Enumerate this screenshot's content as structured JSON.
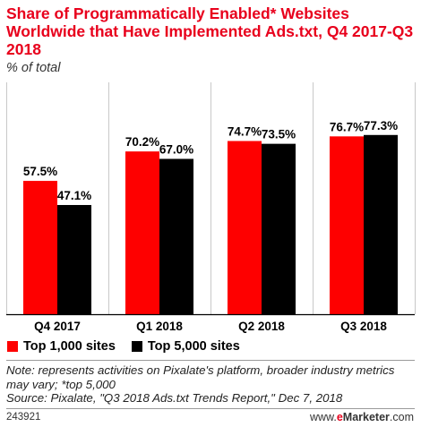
{
  "header": {
    "title": "Share of Programmatically Enabled* Websites Worldwide that Have Implemented Ads.txt, Q4 2017-Q3 2018",
    "subtitle": "% of total"
  },
  "chart_data": {
    "type": "bar",
    "categories": [
      "Q4 2017",
      "Q1 2018",
      "Q2 2018",
      "Q3 2018"
    ],
    "series": [
      {
        "name": "Top 1,000 sites",
        "color": "#fe0000",
        "values": [
          57.5,
          70.2,
          74.7,
          76.7
        ],
        "labels": [
          "57.5%",
          "70.2%",
          "74.7%",
          "76.7%"
        ]
      },
      {
        "name": "Top 5,000 sites",
        "color": "#000000",
        "values": [
          47.1,
          67.0,
          73.5,
          77.3
        ],
        "labels": [
          "47.1%",
          "67.0%",
          "73.5%",
          "77.3%"
        ]
      }
    ],
    "ylim": [
      0,
      100
    ],
    "grid": true,
    "legend": "bottom-left"
  },
  "footer": {
    "note_line1": "Note: represents activities on Pixalate's platform, broader industry metrics",
    "note_line2": "may vary; *top 5,000",
    "source": "Source: Pixalate, \"Q3 2018 Ads.txt Trends Report,\" Dec 7, 2018",
    "chart_id": "243921",
    "brand_prefix": "www.",
    "brand_e": "e",
    "brand_rest": "Marketer",
    "brand_suffix": ".com"
  }
}
